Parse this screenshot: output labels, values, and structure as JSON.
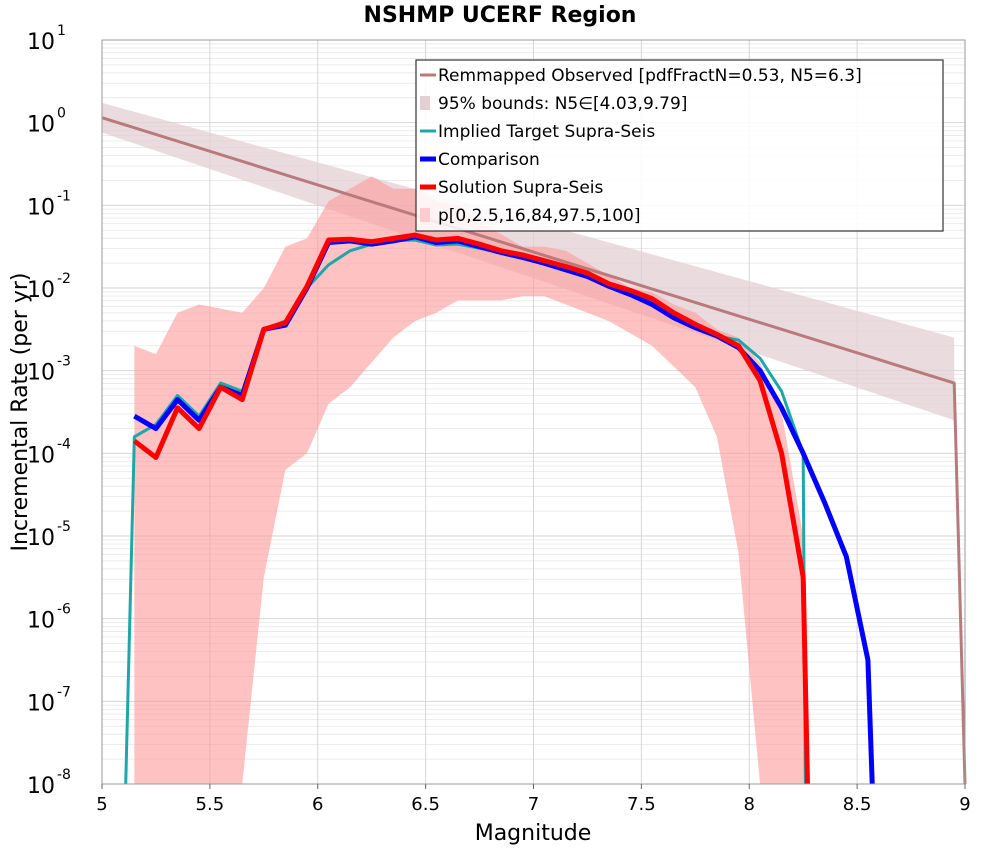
{
  "chart_data": {
    "type": "line",
    "title": "NSHMP UCERF Region",
    "xlabel": "Magnitude",
    "ylabel": "Incremental Rate (per yr)",
    "xlim": [
      5,
      9
    ],
    "ylim_log10": [
      -8,
      1
    ],
    "y_scale": "log",
    "grid": true,
    "legend_position": "top-right",
    "x_ticks": [
      "5",
      "5.5",
      "6",
      "6.5",
      "7",
      "7.5",
      "8",
      "8.5",
      "9"
    ],
    "y_ticks": [
      {
        "base": "10",
        "exp": "1"
      },
      {
        "base": "10",
        "exp": "0"
      },
      {
        "base": "10",
        "exp": "-1"
      },
      {
        "base": "10",
        "exp": "-2"
      },
      {
        "base": "10",
        "exp": "-3"
      },
      {
        "base": "10",
        "exp": "-4"
      },
      {
        "base": "10",
        "exp": "-5"
      },
      {
        "base": "10",
        "exp": "-6"
      },
      {
        "base": "10",
        "exp": "-7"
      },
      {
        "base": "10",
        "exp": "-8"
      }
    ],
    "legend": [
      {
        "label": "Remmapped Observed [pdfFractN=0.53, N5=6.3]",
        "color": "#b87a7d",
        "kind": "line",
        "width": 3
      },
      {
        "label": "95% bounds: N5∈[4.03,9.79]",
        "color": "#e3cfd4",
        "kind": "band"
      },
      {
        "label": "Implied Target Supra-Seis",
        "color": "#1fa6a8",
        "kind": "line",
        "width": 3
      },
      {
        "label": "Comparison",
        "color": "#0000ff",
        "kind": "line",
        "width": 5
      },
      {
        "label": "Solution Supra-Seis",
        "color": "#ff0000",
        "kind": "line",
        "width": 5
      },
      {
        "label": "p[0,2.5,16,84,97.5,100]",
        "color": "#ffcccc",
        "kind": "band"
      }
    ],
    "series": [
      {
        "name": "Remmapped Observed [pdfFractN=0.53, N5=6.3]",
        "color": "#b87a7d",
        "kind": "line",
        "x": [
          5.0,
          8.95,
          9.0
        ],
        "log10y": [
          0.06,
          -3.15,
          -8.0
        ]
      },
      {
        "name": "95% bounds: N5∈[4.03,9.79]",
        "color": "#e3cfd4",
        "kind": "band",
        "x": [
          5.0,
          8.95
        ],
        "log10y_upper": [
          0.24,
          -2.6
        ],
        "log10y_lower": [
          -0.12,
          -3.6
        ]
      },
      {
        "name": "p[0,2.5,16,84,97.5,100]",
        "color": "#ff9999",
        "kind": "band",
        "x": [
          5.15,
          5.25,
          5.35,
          5.45,
          5.55,
          5.65,
          5.75,
          5.85,
          5.95,
          6.05,
          6.15,
          6.25,
          6.35,
          6.45,
          6.55,
          6.65,
          6.75,
          6.85,
          6.95,
          7.05,
          7.15,
          7.25,
          7.35,
          7.45,
          7.55,
          7.65,
          7.75,
          7.85,
          7.95,
          8.05,
          8.15,
          8.25,
          8.27
        ],
        "log10y_upper": [
          -2.7,
          -2.8,
          -2.3,
          -2.2,
          -2.25,
          -2.3,
          -2.0,
          -1.5,
          -1.4,
          -0.95,
          -0.8,
          -0.65,
          -0.8,
          -0.8,
          -0.95,
          -1.0,
          -1.2,
          -1.35,
          -1.5,
          -1.5,
          -1.55,
          -1.7,
          -1.85,
          -2.0,
          -2.05,
          -2.2,
          -2.3,
          -2.5,
          -2.6,
          -2.9,
          -3.5,
          -5.0,
          -8.0
        ],
        "log10y_lower": [
          -8.0,
          -8.0,
          -8.0,
          -8.0,
          -8.0,
          -8.0,
          -5.5,
          -4.2,
          -4.0,
          -3.4,
          -3.2,
          -2.9,
          -2.6,
          -2.4,
          -2.3,
          -2.15,
          -2.15,
          -2.15,
          -2.1,
          -2.1,
          -2.2,
          -2.3,
          -2.4,
          -2.55,
          -2.7,
          -2.95,
          -3.2,
          -3.8,
          -5.2,
          -8.0,
          -8.0,
          -8.0,
          -8.0
        ]
      },
      {
        "name": "Implied Target Supra-Seis",
        "color": "#1fa6a8",
        "kind": "line",
        "x": [
          5.11,
          5.15,
          5.25,
          5.35,
          5.45,
          5.55,
          5.65,
          5.75,
          5.85,
          5.95,
          6.05,
          6.15,
          6.25,
          6.35,
          6.45,
          6.55,
          6.65,
          6.75,
          6.85,
          6.95,
          7.05,
          7.15,
          7.25,
          7.35,
          7.45,
          7.55,
          7.65,
          7.75,
          7.85,
          7.95,
          8.05,
          8.15,
          8.25,
          8.26
        ],
        "log10y": [
          -8.0,
          -3.8,
          -3.65,
          -3.3,
          -3.55,
          -3.15,
          -3.25,
          -2.5,
          -2.4,
          -2.0,
          -1.72,
          -1.55,
          -1.47,
          -1.43,
          -1.42,
          -1.48,
          -1.47,
          -1.52,
          -1.57,
          -1.63,
          -1.69,
          -1.77,
          -1.85,
          -1.97,
          -2.08,
          -2.2,
          -2.33,
          -2.45,
          -2.58,
          -2.63,
          -2.85,
          -3.25,
          -4.0,
          -8.0
        ]
      },
      {
        "name": "Comparison",
        "color": "#0000ff",
        "kind": "line",
        "x": [
          5.15,
          5.25,
          5.35,
          5.45,
          5.55,
          5.65,
          5.75,
          5.85,
          5.95,
          6.05,
          6.15,
          6.25,
          6.35,
          6.45,
          6.55,
          6.65,
          6.75,
          6.85,
          6.95,
          7.05,
          7.15,
          7.25,
          7.35,
          7.45,
          7.55,
          7.65,
          7.75,
          7.85,
          7.95,
          8.05,
          8.15,
          8.25,
          8.35,
          8.45,
          8.55,
          8.57
        ],
        "log10y": [
          -3.55,
          -3.7,
          -3.35,
          -3.6,
          -3.2,
          -3.3,
          -2.5,
          -2.45,
          -2.0,
          -1.45,
          -1.43,
          -1.47,
          -1.43,
          -1.38,
          -1.45,
          -1.43,
          -1.5,
          -1.57,
          -1.63,
          -1.7,
          -1.78,
          -1.86,
          -1.98,
          -2.08,
          -2.2,
          -2.36,
          -2.48,
          -2.58,
          -2.72,
          -3.0,
          -3.45,
          -4.0,
          -4.6,
          -5.25,
          -6.5,
          -8.0
        ]
      },
      {
        "name": "Solution Supra-Seis",
        "color": "#ff0000",
        "kind": "line",
        "x": [
          5.15,
          5.25,
          5.35,
          5.45,
          5.55,
          5.65,
          5.75,
          5.85,
          5.95,
          6.05,
          6.15,
          6.25,
          6.35,
          6.45,
          6.55,
          6.65,
          6.75,
          6.85,
          6.95,
          7.05,
          7.15,
          7.25,
          7.35,
          7.45,
          7.55,
          7.65,
          7.75,
          7.85,
          7.95,
          8.05,
          8.15,
          8.25,
          8.27
        ],
        "log10y": [
          -3.85,
          -4.05,
          -3.45,
          -3.7,
          -3.2,
          -3.35,
          -2.5,
          -2.42,
          -1.98,
          -1.42,
          -1.41,
          -1.44,
          -1.4,
          -1.36,
          -1.42,
          -1.4,
          -1.47,
          -1.55,
          -1.6,
          -1.67,
          -1.74,
          -1.82,
          -1.95,
          -2.03,
          -2.13,
          -2.3,
          -2.44,
          -2.56,
          -2.7,
          -3.12,
          -4.0,
          -5.5,
          -8.0
        ]
      }
    ]
  }
}
